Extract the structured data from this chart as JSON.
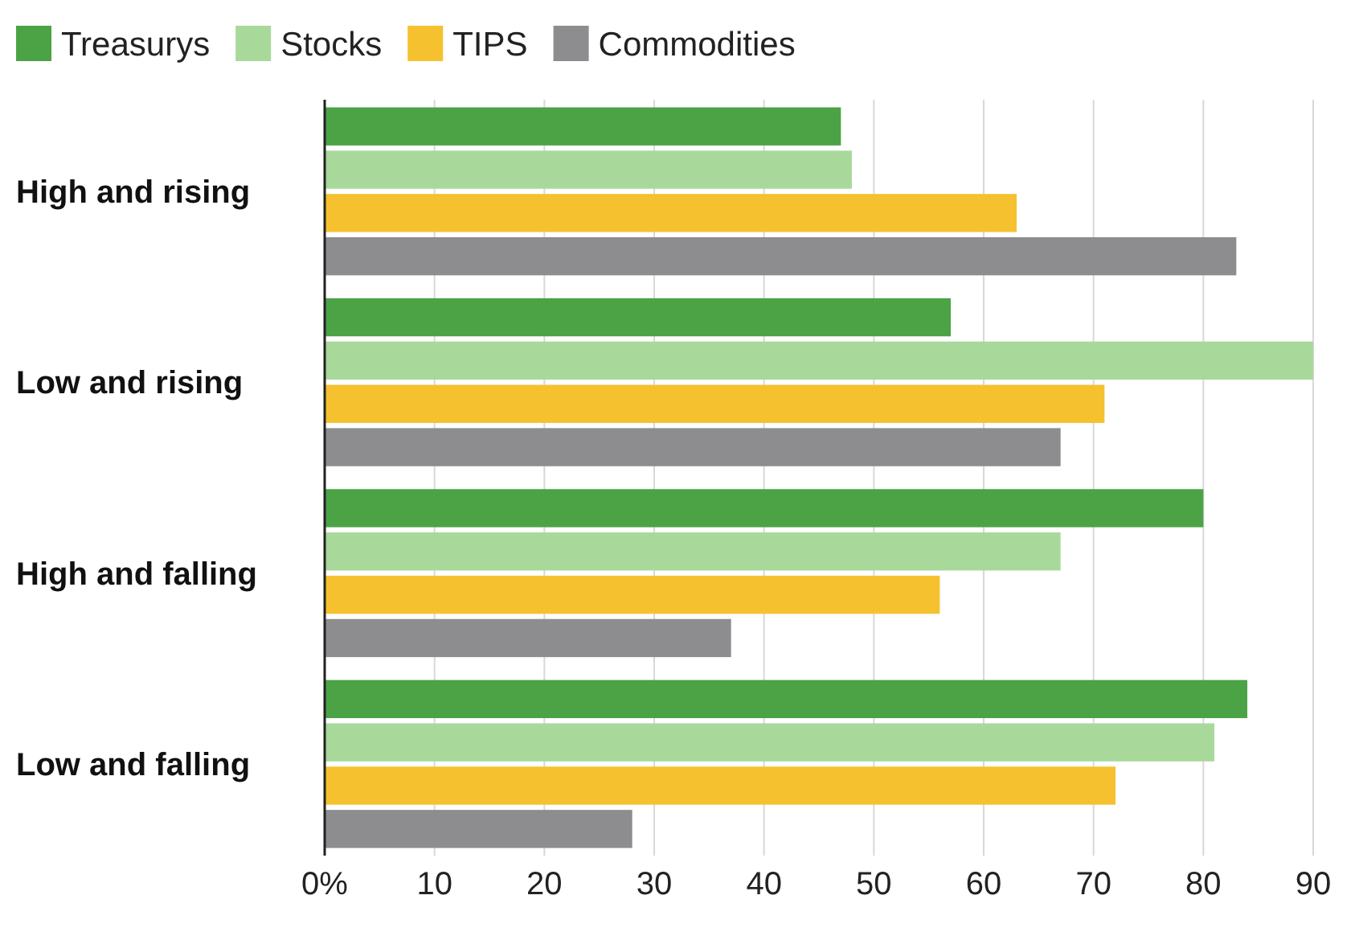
{
  "chart_data": {
    "type": "bar",
    "orientation": "horizontal",
    "categories": [
      "High and rising",
      "Low and rising",
      "High and falling",
      "Low and falling"
    ],
    "series": [
      {
        "name": "Treasurys",
        "color": "#4ba345",
        "values": [
          47,
          57,
          80,
          84
        ]
      },
      {
        "name": "Stocks",
        "color": "#a8d99b",
        "values": [
          48,
          90,
          67,
          81
        ]
      },
      {
        "name": "TIPS",
        "color": "#f5c12f",
        "values": [
          63,
          71,
          56,
          72
        ]
      },
      {
        "name": "Commodities",
        "color": "#8d8d8f",
        "values": [
          83,
          67,
          37,
          28
        ]
      }
    ],
    "xlim": [
      0,
      90
    ],
    "xticks": [
      {
        "value": 0,
        "label": "0%"
      },
      10,
      20,
      30,
      40,
      50,
      60,
      70,
      80,
      90
    ],
    "grid": "x",
    "legend": "top left"
  }
}
